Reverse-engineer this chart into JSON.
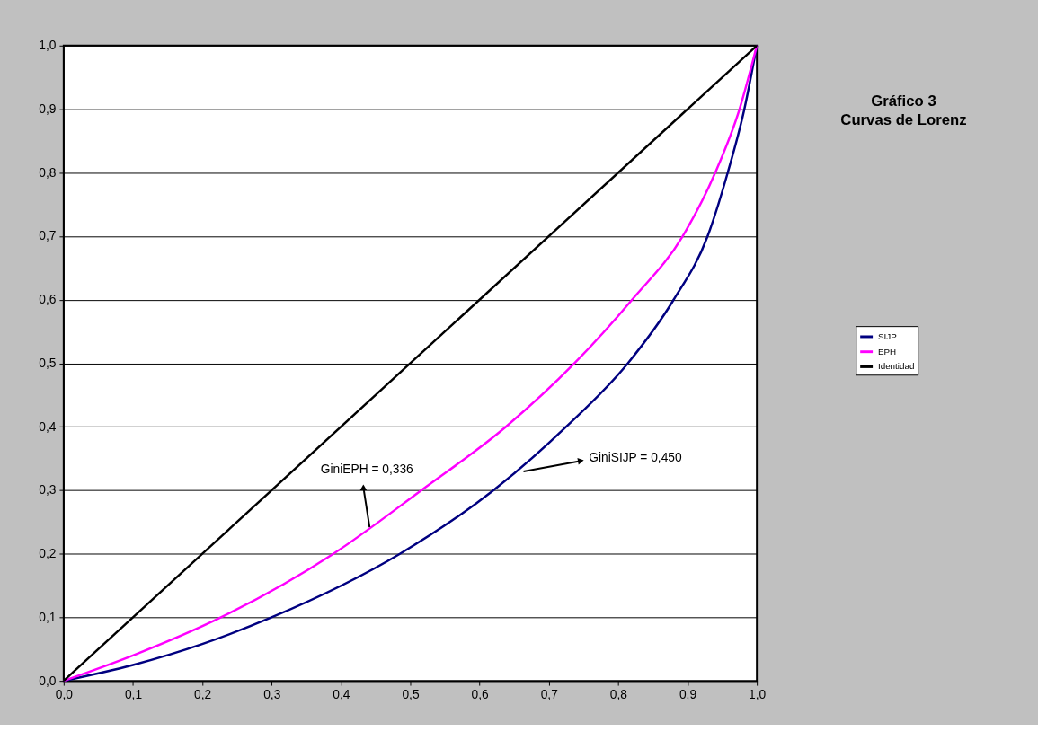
{
  "chart_data": {
    "type": "line",
    "title": [
      "Gráfico 3",
      "Curvas de Lorenz"
    ],
    "xlim": [
      0,
      1
    ],
    "ylim": [
      0,
      1
    ],
    "xticks": [
      {
        "value": 0,
        "label": "0,0"
      },
      {
        "value": 0.1,
        "label": "0,1"
      },
      {
        "value": 0.2,
        "label": "0,2"
      },
      {
        "value": 0.3,
        "label": "0,3"
      },
      {
        "value": 0.4,
        "label": "0,4"
      },
      {
        "value": 0.5,
        "label": "0,5"
      },
      {
        "value": 0.6,
        "label": "0,6"
      },
      {
        "value": 0.7,
        "label": "0,7"
      },
      {
        "value": 0.8,
        "label": "0,8"
      },
      {
        "value": 0.9,
        "label": "0,9"
      },
      {
        "value": 1,
        "label": "1,0"
      }
    ],
    "yticks": [
      {
        "value": 0,
        "label": "0,0"
      },
      {
        "value": 0.1,
        "label": "0,1"
      },
      {
        "value": 0.2,
        "label": "0,2"
      },
      {
        "value": 0.3,
        "label": "0,3"
      },
      {
        "value": 0.4,
        "label": "0,4"
      },
      {
        "value": 0.5,
        "label": "0,5"
      },
      {
        "value": 0.6,
        "label": "0,6"
      },
      {
        "value": 0.7,
        "label": "0,7"
      },
      {
        "value": 0.8,
        "label": "0,8"
      },
      {
        "value": 0.9,
        "label": "0,9"
      },
      {
        "value": 1,
        "label": "1,0"
      }
    ],
    "grid": "y",
    "legend": "right",
    "marker": "none",
    "line_style": "solid",
    "series": [
      {
        "name": "SIJP",
        "color": "#000080",
        "x": [
          0,
          0.1,
          0.2,
          0.3,
          0.485,
          0.62,
          0.725,
          0.814,
          0.88,
          0.929,
          0.958,
          0.982,
          1
        ],
        "values": [
          0,
          0.025,
          0.058,
          0.1,
          0.2,
          0.3,
          0.4,
          0.5,
          0.6,
          0.7,
          0.8,
          0.9,
          1
        ]
      },
      {
        "name": "EPH",
        "color": "#ff00ff",
        "x": [
          0,
          0.1,
          0.227,
          0.389,
          0.516,
          0.638,
          0.737,
          0.82,
          0.893,
          0.94,
          0.975,
          1
        ],
        "values": [
          0,
          0.04,
          0.1,
          0.2,
          0.3,
          0.4,
          0.5,
          0.6,
          0.7,
          0.8,
          0.9,
          1
        ]
      },
      {
        "name": "Identidad",
        "color": "#000000",
        "x": [
          0,
          1
        ],
        "values": [
          0,
          1
        ]
      }
    ],
    "annotations": [
      "GiniEPH = 0,336",
      "GiniSIJP = 0,450"
    ]
  }
}
